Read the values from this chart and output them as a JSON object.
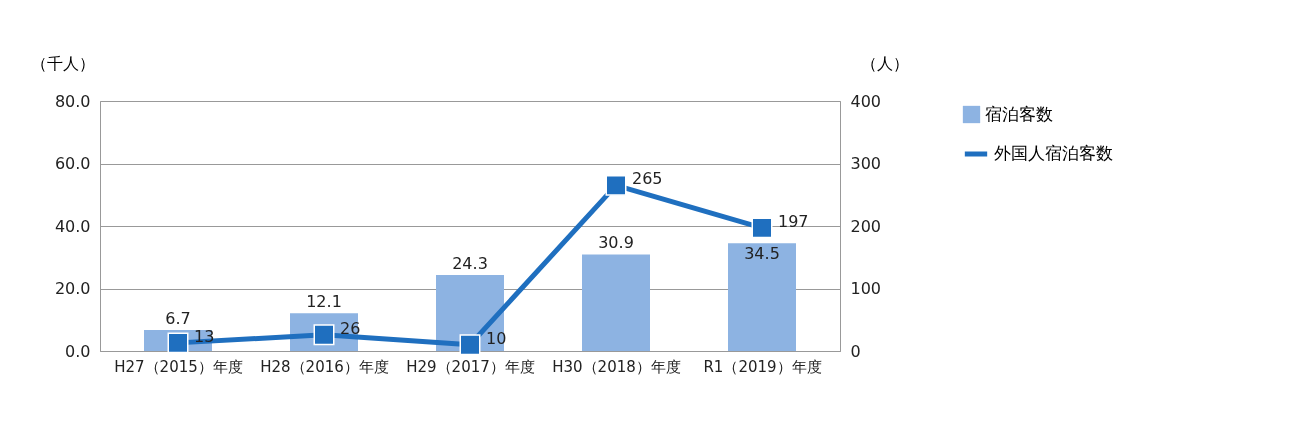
{
  "chart_data": {
    "type": "bar",
    "categories": [
      "H27（2015）年度",
      "H28（2016）年度",
      "H29（2017）年度",
      "H30（2018）年度",
      "R1（2019）年度"
    ],
    "series": [
      {
        "name": "宿泊客数",
        "color": "#8db3e2",
        "values": [
          6.7,
          12.1,
          24.3,
          30.9,
          34.5
        ]
      },
      {
        "name": "外国人宿泊客数",
        "type": "line",
        "axis": "y2",
        "color": "#1f6fbf",
        "marker": "square",
        "values": [
          13,
          26,
          10,
          265,
          197
        ]
      }
    ],
    "ylabel": "（千人）",
    "y2label": "（人）",
    "ylim": [
      0,
      80
    ],
    "yticks": [
      {
        "value": 0,
        "label": "0.0"
      },
      {
        "value": 20,
        "label": "20.0"
      },
      {
        "value": 40,
        "label": "40.0"
      },
      {
        "value": 60,
        "label": "60.0"
      },
      {
        "value": 80,
        "label": "80.0"
      }
    ],
    "y2lim": [
      0,
      400
    ],
    "y2ticks": [
      0,
      100,
      200,
      300,
      400
    ],
    "grid": "y",
    "legend": "right",
    "data_labels": true
  }
}
